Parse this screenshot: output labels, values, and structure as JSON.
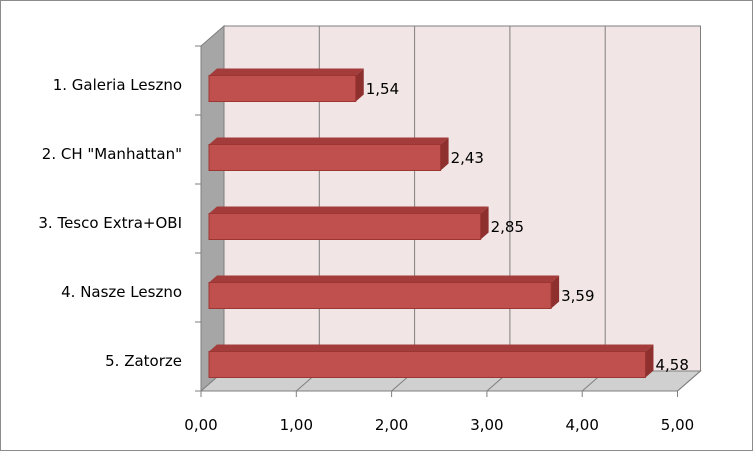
{
  "chart_data": {
    "type": "bar",
    "orientation": "horizontal",
    "style": "3d",
    "categories": [
      "1. Galeria Leszno",
      "2. CH \"Manhattan\"",
      "3. Tesco Extra+OBI",
      "4. Nasze Leszno",
      "5. Zatorze"
    ],
    "values": [
      1.54,
      2.43,
      2.85,
      3.59,
      4.58
    ],
    "value_labels": [
      "1,54",
      "2,43",
      "2,85",
      "3,59",
      "4,58"
    ],
    "x_ticks": [
      "0,00",
      "1,00",
      "2,00",
      "3,00",
      "4,00",
      "5,00"
    ],
    "xlim": [
      0,
      5
    ],
    "title": "",
    "xlabel": "",
    "ylabel": "",
    "grid": true,
    "legend": "none",
    "colors": {
      "bar_front": "#c0504d",
      "bar_top": "#a33c3a",
      "bar_side": "#8e302e",
      "back_wall": "#f2e5e5",
      "side_wall": "#a6a6a6",
      "floor": "#d0d0d0",
      "gridline": "#7f7f7f"
    }
  }
}
